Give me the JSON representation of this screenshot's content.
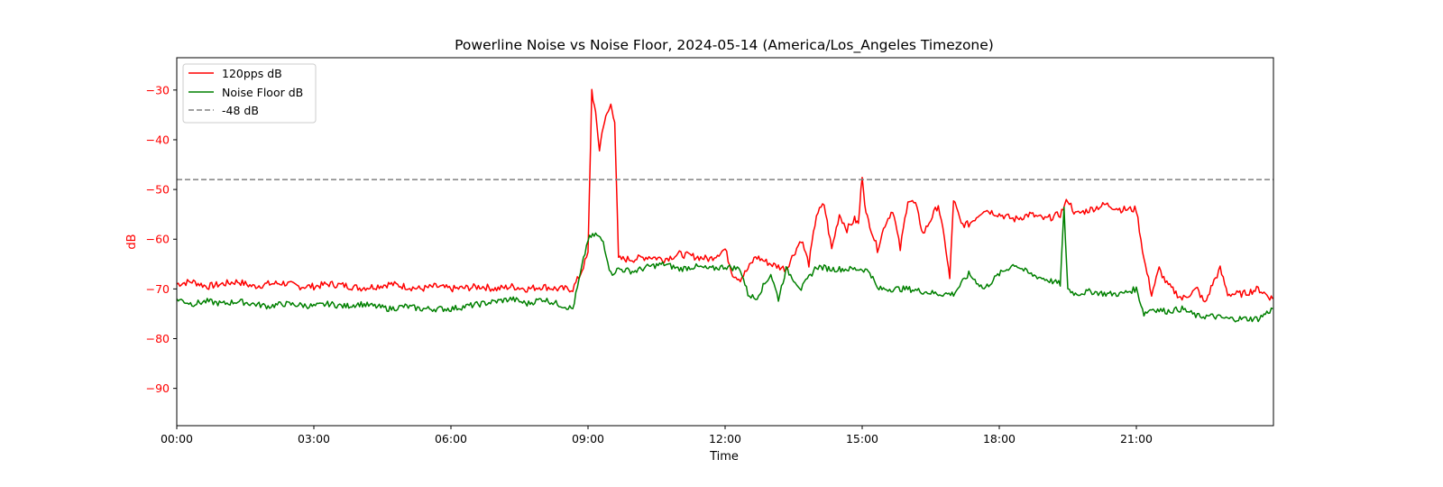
{
  "chart_data": {
    "type": "line",
    "title": "Powerline Noise vs Noise Floor, 2024-05-14 (America/Los_Angeles Timezone)",
    "xlabel": "Time",
    "ylabel": "dB",
    "xlim": [
      "00:00",
      "24:00"
    ],
    "ylim": [
      -97.5,
      -23.5
    ],
    "x_ticks": [
      "00:00",
      "03:00",
      "06:00",
      "09:00",
      "12:00",
      "15:00",
      "18:00",
      "21:00"
    ],
    "y_ticks": [
      -30,
      -40,
      -50,
      -60,
      -70,
      -80,
      -90
    ],
    "y_tick_labels": [
      "−30",
      "−40",
      "−50",
      "−60",
      "−70",
      "−80",
      "−90"
    ],
    "grid": false,
    "legend_position": "top-left",
    "colors": {
      "signal": "#ff0000",
      "floor": "#008000",
      "threshold": "#808080",
      "ylabel": "#ff0000"
    },
    "threshold": {
      "name": "-48 dB",
      "value": -48
    },
    "series": [
      {
        "name": "120pps dB",
        "x": [
          "00:00",
          "00:20",
          "00:40",
          "01:00",
          "01:20",
          "01:40",
          "02:00",
          "02:20",
          "02:40",
          "03:00",
          "03:20",
          "03:40",
          "04:00",
          "04:20",
          "04:40",
          "05:00",
          "05:20",
          "05:40",
          "06:00",
          "06:20",
          "06:40",
          "07:00",
          "07:20",
          "07:40",
          "08:00",
          "08:20",
          "08:40",
          "08:50",
          "09:00",
          "09:05",
          "09:10",
          "09:15",
          "09:20",
          "09:25",
          "09:30",
          "09:35",
          "09:40",
          "10:00",
          "10:20",
          "10:40",
          "11:00",
          "11:20",
          "11:40",
          "12:00",
          "12:10",
          "12:20",
          "12:30",
          "12:40",
          "13:00",
          "13:20",
          "13:40",
          "13:50",
          "14:00",
          "14:10",
          "14:20",
          "14:30",
          "14:40",
          "14:50",
          "14:55",
          "15:00",
          "15:05",
          "15:10",
          "15:20",
          "15:30",
          "15:40",
          "15:50",
          "16:00",
          "16:10",
          "16:20",
          "16:30",
          "16:40",
          "16:50",
          "16:55",
          "17:00",
          "17:10",
          "17:20",
          "17:40",
          "18:00",
          "18:20",
          "18:40",
          "19:00",
          "19:20",
          "19:30",
          "19:40",
          "20:00",
          "20:20",
          "20:40",
          "21:00",
          "21:10",
          "21:20",
          "21:30",
          "21:40",
          "22:00",
          "22:20",
          "22:30",
          "22:40",
          "22:50",
          "23:00",
          "23:20",
          "23:40",
          "23:59"
        ],
        "values": [
          -69,
          -68.5,
          -69.5,
          -69,
          -68.5,
          -69.5,
          -69,
          -68.8,
          -69.5,
          -69.5,
          -69,
          -69.3,
          -69.8,
          -69.5,
          -69,
          -69.5,
          -70,
          -69.5,
          -70,
          -69.8,
          -69.5,
          -70,
          -69.5,
          -70,
          -69.5,
          -70,
          -70,
          -67,
          -63,
          -30,
          -35,
          -42,
          -37,
          -35,
          -33,
          -36,
          -64,
          -64,
          -63.5,
          -64,
          -63,
          -63.5,
          -64,
          -62,
          -67,
          -68,
          -66,
          -63.5,
          -65,
          -66,
          -60,
          -65,
          -55,
          -53,
          -62,
          -55,
          -58,
          -56,
          -57,
          -47,
          -55,
          -57,
          -62,
          -57,
          -54,
          -62,
          -52,
          -53,
          -59,
          -56,
          -53,
          -62,
          -68,
          -52,
          -57,
          -57,
          -54,
          -55,
          -56,
          -55,
          -56,
          -55,
          -52,
          -55,
          -54,
          -53,
          -54,
          -54,
          -64,
          -71,
          -66,
          -69,
          -72,
          -70,
          -73,
          -69,
          -66,
          -71,
          -71,
          -70,
          -72
        ]
      },
      {
        "name": "Noise Floor dB",
        "x": [
          "00:00",
          "00:20",
          "00:40",
          "01:00",
          "01:20",
          "01:40",
          "02:00",
          "02:20",
          "02:40",
          "03:00",
          "03:20",
          "03:40",
          "04:00",
          "04:20",
          "04:40",
          "05:00",
          "05:20",
          "05:40",
          "06:00",
          "06:20",
          "06:40",
          "07:00",
          "07:20",
          "07:40",
          "08:00",
          "08:20",
          "08:40",
          "08:50",
          "09:00",
          "09:10",
          "09:20",
          "09:30",
          "09:40",
          "10:00",
          "10:20",
          "10:40",
          "11:00",
          "11:20",
          "11:40",
          "12:00",
          "12:20",
          "12:30",
          "12:40",
          "13:00",
          "13:10",
          "13:20",
          "13:40",
          "14:00",
          "14:20",
          "14:40",
          "15:00",
          "15:10",
          "15:20",
          "15:40",
          "16:00",
          "16:20",
          "16:40",
          "17:00",
          "17:20",
          "17:40",
          "18:00",
          "18:20",
          "18:40",
          "19:00",
          "19:20",
          "19:25",
          "19:30",
          "19:40",
          "20:00",
          "20:20",
          "20:40",
          "21:00",
          "21:10",
          "21:20",
          "21:40",
          "22:00",
          "22:20",
          "22:40",
          "23:00",
          "23:20",
          "23:40",
          "23:59"
        ],
        "values": [
          -72,
          -73,
          -72.5,
          -73,
          -72.5,
          -73,
          -73.5,
          -73,
          -73.2,
          -73.5,
          -73,
          -73.5,
          -73,
          -73.5,
          -74,
          -73.5,
          -74,
          -74,
          -74,
          -73.5,
          -73,
          -72.5,
          -72,
          -73,
          -72,
          -73,
          -74,
          -67,
          -60,
          -59,
          -60.5,
          -67,
          -66,
          -66.5,
          -65.5,
          -65,
          -66,
          -65.5,
          -66,
          -65.5,
          -66,
          -71,
          -72,
          -67,
          -72,
          -66,
          -70,
          -65.5,
          -66,
          -66,
          -66,
          -66.5,
          -70,
          -70,
          -70,
          -70.5,
          -71,
          -71,
          -67,
          -70,
          -67,
          -65,
          -67,
          -68,
          -69,
          -54,
          -70,
          -71,
          -70.5,
          -71,
          -71,
          -70,
          -75,
          -74,
          -74.5,
          -74,
          -75.5,
          -75.5,
          -76,
          -76,
          -76,
          -74
        ]
      }
    ]
  }
}
